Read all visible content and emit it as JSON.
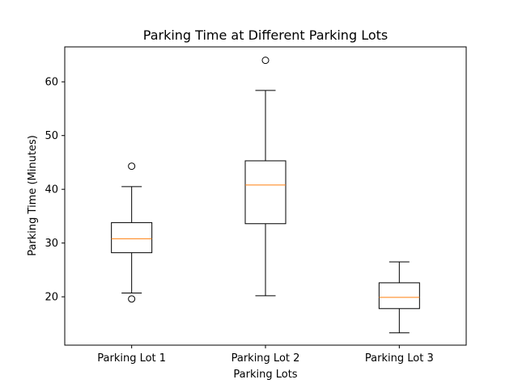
{
  "chart_data": {
    "type": "boxplot",
    "title": "Parking Time at Different Parking Lots",
    "xlabel": "Parking Lots",
    "ylabel": "Parking Time (Minutes)",
    "ylim": [
      11,
      66.5
    ],
    "yticks": [
      20,
      30,
      40,
      50,
      60
    ],
    "categories": [
      "Parking Lot 1",
      "Parking Lot 2",
      "Parking Lot 3"
    ],
    "boxes": [
      {
        "whisker_low": 20.7,
        "q1": 28.2,
        "median": 30.8,
        "q3": 33.8,
        "whisker_high": 40.5,
        "outliers": [
          44.3,
          19.6
        ]
      },
      {
        "whisker_low": 20.2,
        "q1": 33.6,
        "median": 40.8,
        "q3": 45.3,
        "whisker_high": 58.4,
        "outliers": [
          64.0
        ]
      },
      {
        "whisker_low": 13.3,
        "q1": 17.8,
        "median": 19.9,
        "q3": 22.6,
        "whisker_high": 26.5,
        "outliers": []
      }
    ],
    "colors": {
      "box": "#000000",
      "median": "#ff7f0e",
      "frame": "#000000"
    }
  }
}
